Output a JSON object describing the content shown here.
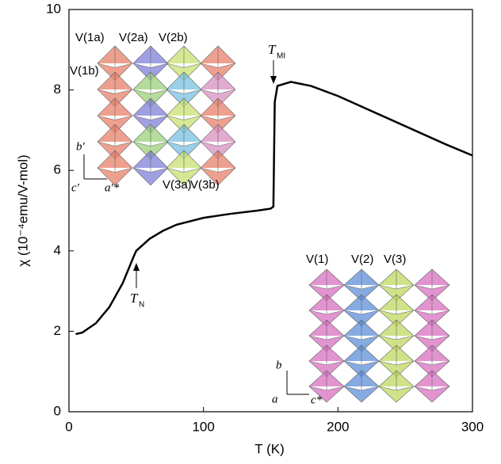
{
  "chart_data": {
    "type": "line",
    "x_label": "T (K)",
    "y_label": "χ (10⁻⁴emu/V-mol)",
    "x": [
      5,
      10,
      20,
      30,
      40,
      48,
      50,
      60,
      70,
      80,
      100,
      120,
      140,
      150,
      152,
      153,
      155,
      160,
      165,
      180,
      200,
      220,
      240,
      260,
      280,
      300
    ],
    "series": [
      {
        "color": "#000000",
        "values": [
          1.93,
          1.97,
          2.2,
          2.6,
          3.2,
          3.85,
          4.0,
          4.3,
          4.5,
          4.65,
          4.82,
          4.92,
          5.0,
          5.05,
          5.1,
          7.7,
          8.1,
          8.15,
          8.2,
          8.1,
          7.85,
          7.55,
          7.25,
          6.95,
          6.65,
          6.37
        ]
      }
    ],
    "xlim": [
      0,
      300
    ],
    "xticks": [
      0,
      100,
      200,
      300
    ],
    "ylim": [
      0,
      10
    ],
    "yticks": [
      0,
      2,
      4,
      6,
      8,
      10
    ],
    "annotations": [
      {
        "text": "T",
        "sub": "MI"
      },
      {
        "text": "T",
        "sub": "N"
      }
    ]
  },
  "insets": {
    "top": {
      "labels": [
        "V(1a)",
        "V(2a)",
        "V(2b)",
        "V(1b)",
        "V(3a)",
        "V(3b)"
      ],
      "axes": [
        "b'",
        "c'",
        "a'*"
      ]
    },
    "bottom": {
      "labels": [
        "V(1)",
        "V(2)",
        "V(3)"
      ],
      "axes": [
        "b",
        "a",
        "c*"
      ]
    }
  }
}
